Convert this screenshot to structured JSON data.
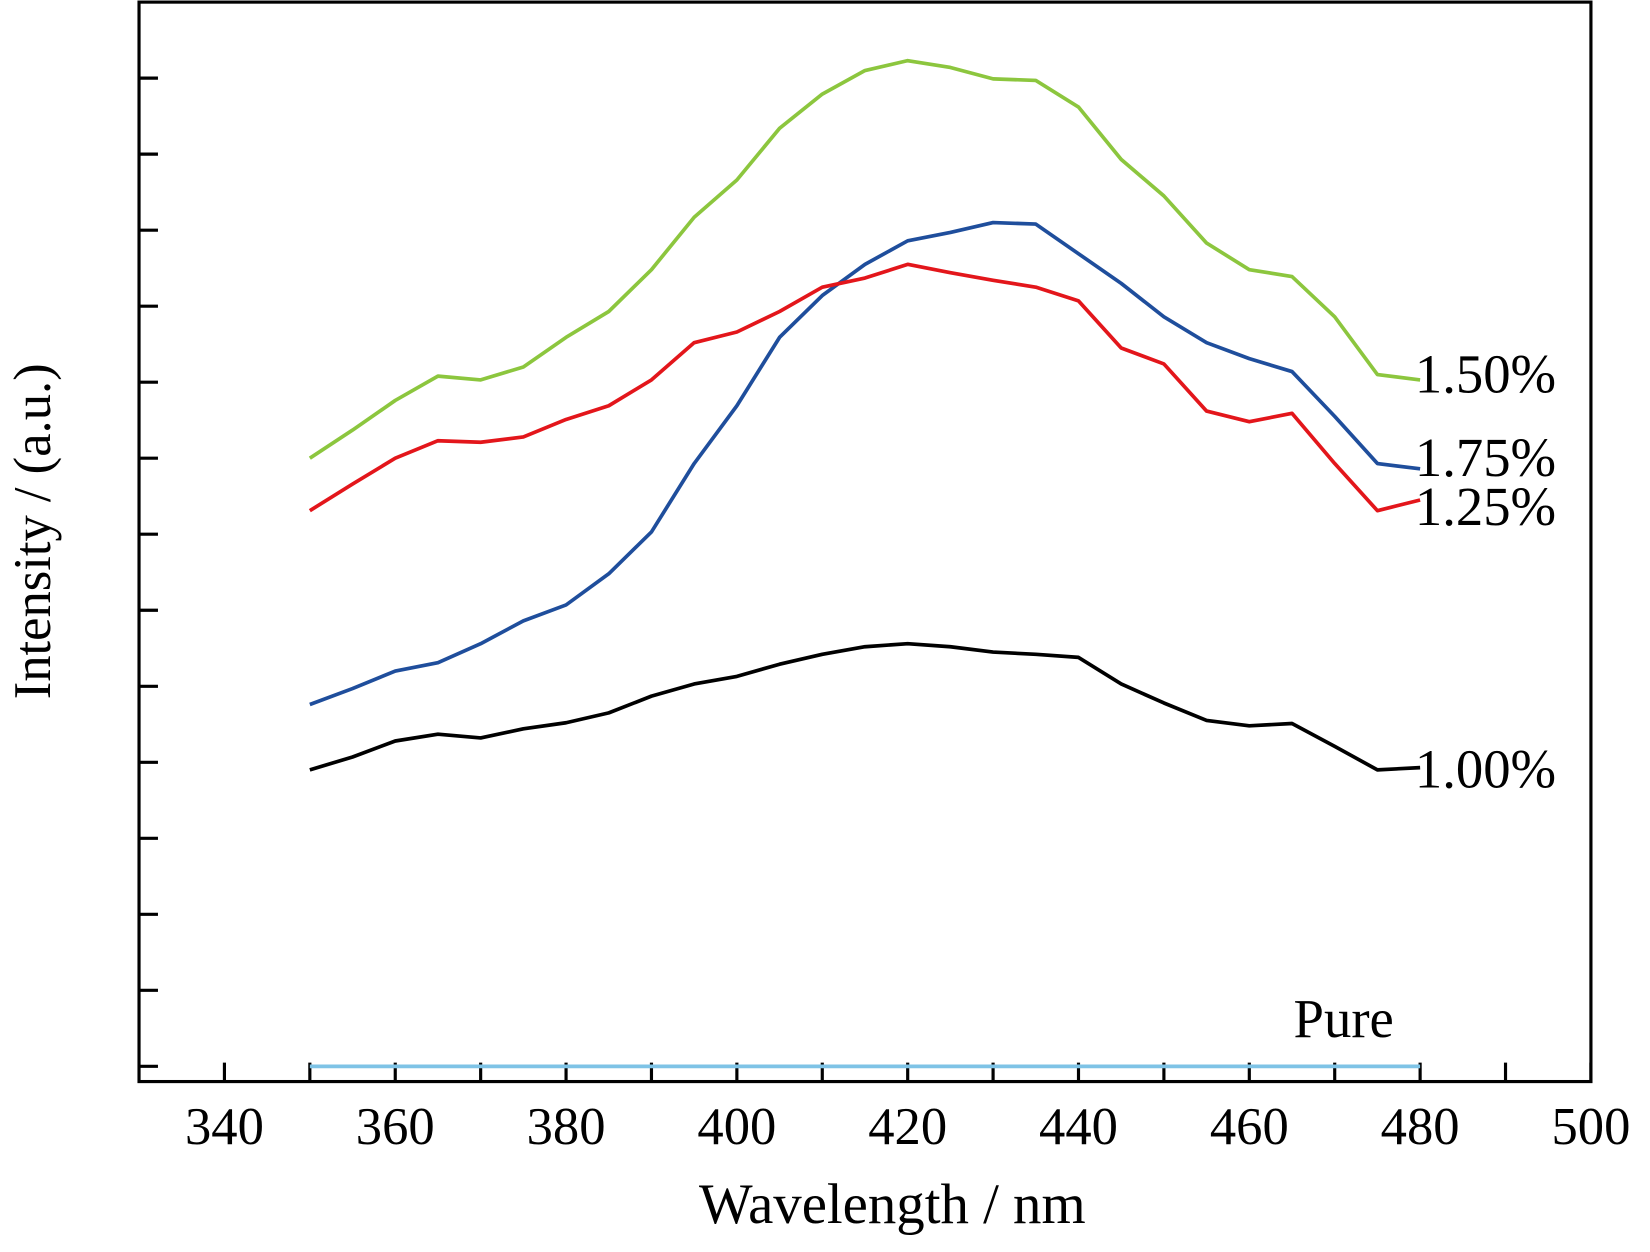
{
  "chart_data": {
    "type": "line",
    "xlabel": "Wavelength / nm",
    "ylabel": "Intensity / (a.u.)",
    "x": [
      350,
      355,
      360,
      365,
      370,
      375,
      380,
      385,
      390,
      395,
      400,
      405,
      410,
      415,
      420,
      425,
      430,
      435,
      440,
      445,
      450,
      455,
      460,
      465,
      470,
      475,
      480
    ],
    "series": [
      {
        "name": "1.50%",
        "color": "#8cc63e",
        "values": [
          8.0,
          8.37,
          8.76,
          9.08,
          9.03,
          9.2,
          9.59,
          9.93,
          10.48,
          11.17,
          11.66,
          12.34,
          12.79,
          13.1,
          13.23,
          13.14,
          12.99,
          12.97,
          12.62,
          11.93,
          11.45,
          10.83,
          10.48,
          10.39,
          9.86,
          9.1,
          9.03
        ]
      },
      {
        "name": "1.75%",
        "color": "#1f4e9c",
        "values": [
          4.76,
          4.97,
          5.2,
          5.31,
          5.56,
          5.86,
          6.07,
          6.48,
          7.03,
          7.93,
          8.69,
          9.59,
          10.14,
          10.55,
          10.86,
          10.97,
          11.1,
          11.08,
          10.69,
          10.3,
          9.86,
          9.52,
          9.31,
          9.14,
          8.55,
          7.93,
          7.86
        ]
      },
      {
        "name": "1.25%",
        "color": "#e3161b",
        "values": [
          7.31,
          7.66,
          8.0,
          8.23,
          8.21,
          8.28,
          8.51,
          8.69,
          9.03,
          9.52,
          9.66,
          9.93,
          10.25,
          10.37,
          10.55,
          10.44,
          10.34,
          10.25,
          10.07,
          9.45,
          9.24,
          8.62,
          8.48,
          8.59,
          7.93,
          7.31,
          7.45
        ]
      },
      {
        "name": "1.00%",
        "color": "#000000",
        "values": [
          3.9,
          4.07,
          4.28,
          4.37,
          4.32,
          4.44,
          4.52,
          4.65,
          4.87,
          5.03,
          5.13,
          5.29,
          5.42,
          5.52,
          5.56,
          5.52,
          5.45,
          5.42,
          5.38,
          5.03,
          4.78,
          4.55,
          4.48,
          4.51,
          4.21,
          3.9,
          3.93
        ]
      },
      {
        "name": "Pure",
        "color": "#7ec3e6",
        "values": [
          0,
          0,
          0,
          0,
          0,
          0,
          0,
          0,
          0,
          0,
          0,
          0,
          0,
          0,
          0,
          0,
          0,
          0,
          0,
          0,
          0,
          0,
          0,
          0,
          0,
          0,
          0
        ]
      }
    ],
    "xlim": [
      330,
      500
    ],
    "xticks": [
      340,
      360,
      380,
      400,
      420,
      440,
      460,
      480,
      500
    ],
    "xticks_minor": [
      350,
      370,
      390,
      410,
      430,
      450,
      470,
      490
    ],
    "ylim": [
      -0.2,
      14
    ],
    "yticks": [
      0,
      1,
      2,
      3,
      4,
      5,
      6,
      7,
      8,
      9,
      10,
      11,
      12,
      13
    ]
  }
}
